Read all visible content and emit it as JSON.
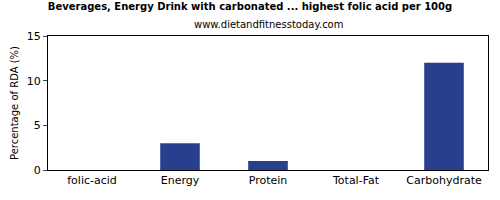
{
  "chart_data": {
    "type": "bar",
    "title": "Beverages, Energy Drink with carbonated ... highest folic acid per 100g",
    "subtitle": "www.dietandfitnesstoday.com",
    "y_label": "Percentage of RDA (%)",
    "categories": [
      "folic-acid",
      "Energy",
      "Protein",
      "Total-Fat",
      "Carbohydrate"
    ],
    "values": [
      0,
      3,
      1,
      0,
      12
    ],
    "color": "#283f8e",
    "ylim": [
      0,
      15
    ],
    "yticks": [
      0,
      5,
      10,
      15
    ],
    "grid": false
  }
}
